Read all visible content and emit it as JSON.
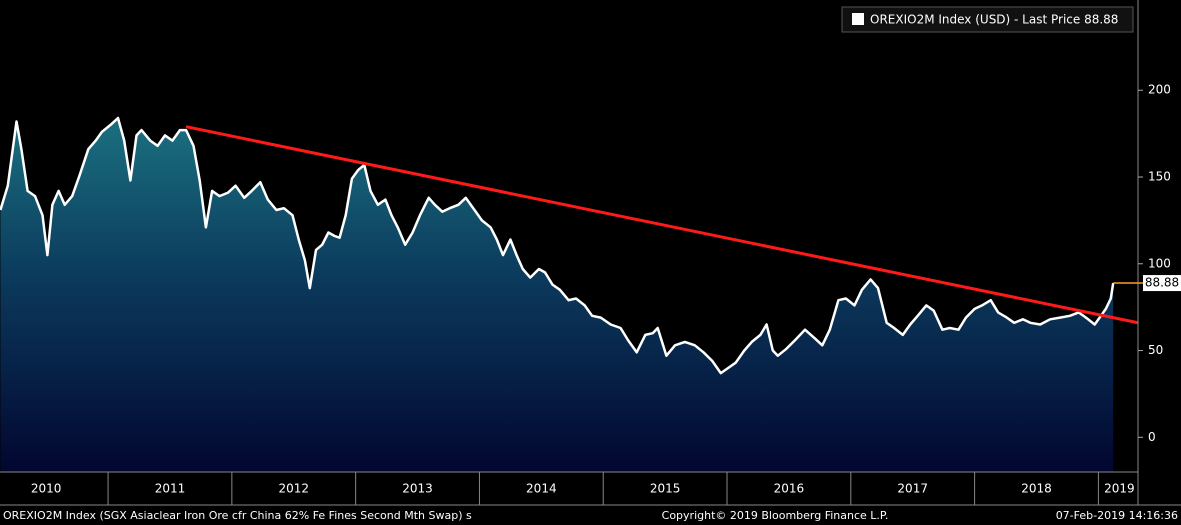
{
  "chart_data": {
    "type": "area",
    "series": [
      {
        "name": "OREXIO2M Index (USD) - Last Price 88.88",
        "color": "#ffffff",
        "x": [
          2010.13,
          2010.19,
          2010.26,
          2010.3,
          2010.35,
          2010.41,
          2010.47,
          2010.51,
          2010.55,
          2010.6,
          2010.65,
          2010.71,
          2010.77,
          2010.84,
          2010.9,
          2010.95,
          2011.02,
          2011.08,
          2011.13,
          2011.18,
          2011.23,
          2011.27,
          2011.34,
          2011.4,
          2011.46,
          2011.52,
          2011.58,
          2011.63,
          2011.69,
          2011.74,
          2011.79,
          2011.84,
          2011.9,
          2011.97,
          2012.03,
          2012.1,
          2012.16,
          2012.23,
          2012.29,
          2012.36,
          2012.42,
          2012.49,
          2012.54,
          2012.59,
          2012.63,
          2012.68,
          2012.73,
          2012.78,
          2012.83,
          2012.87,
          2012.92,
          2012.97,
          2013.02,
          2013.07,
          2013.12,
          2013.18,
          2013.24,
          2013.29,
          2013.34,
          2013.4,
          2013.46,
          2013.52,
          2013.59,
          2013.64,
          2013.7,
          2013.76,
          2013.83,
          2013.89,
          2013.96,
          2014.02,
          2014.09,
          2014.14,
          2014.19,
          2014.25,
          2014.3,
          2014.35,
          2014.41,
          2014.48,
          2014.53,
          2014.59,
          2014.65,
          2014.72,
          2014.78,
          2014.85,
          2014.91,
          2014.98,
          2015.06,
          2015.14,
          2015.2,
          2015.27,
          2015.34,
          2015.4,
          2015.44,
          2015.51,
          2015.58,
          2015.66,
          2015.74,
          2015.81,
          2015.88,
          2015.95,
          2016.01,
          2016.07,
          2016.14,
          2016.2,
          2016.27,
          2016.32,
          2016.37,
          2016.41,
          2016.48,
          2016.55,
          2016.63,
          2016.71,
          2016.77,
          2016.83,
          2016.9,
          2016.96,
          2017.03,
          2017.09,
          2017.16,
          2017.22,
          2017.29,
          2017.35,
          2017.42,
          2017.48,
          2017.54,
          2017.61,
          2017.67,
          2017.74,
          2017.8,
          2017.87,
          2017.93,
          2018.0,
          2018.06,
          2018.13,
          2018.19,
          2018.26,
          2018.32,
          2018.39,
          2018.45,
          2018.53,
          2018.61,
          2018.69,
          2018.77,
          2018.84,
          2018.9,
          2018.97,
          2019.02,
          2019.06,
          2019.1,
          2019.12
        ],
        "values": [
          131,
          145,
          182,
          166,
          142,
          139,
          128,
          105,
          134,
          142,
          134,
          139,
          151,
          166,
          171,
          176,
          180,
          184,
          171,
          148,
          174,
          177,
          171,
          168,
          174,
          171,
          177,
          177,
          168,
          148,
          121,
          142,
          139,
          141,
          145,
          138,
          142,
          147,
          137,
          131,
          132,
          128,
          114,
          102,
          86,
          108,
          111,
          118,
          116,
          115,
          128,
          149,
          154,
          157,
          142,
          134,
          137,
          128,
          121,
          111,
          118,
          128,
          138,
          134,
          130,
          132,
          134,
          138,
          131,
          125,
          121,
          114,
          105,
          114,
          105,
          97,
          92,
          97,
          95,
          88,
          85,
          79,
          80,
          76,
          70,
          69,
          65,
          63,
          56,
          49,
          59,
          60,
          63,
          47,
          53,
          55,
          53,
          49,
          44,
          37,
          40,
          43,
          50,
          55,
          59,
          65,
          50,
          47,
          51,
          56,
          62,
          57,
          53,
          62,
          79,
          80,
          76,
          85,
          91,
          86,
          66,
          63,
          59,
          65,
          70,
          76,
          73,
          62,
          63,
          62,
          69,
          74,
          76,
          79,
          72,
          69,
          66,
          68,
          66,
          65,
          68,
          69,
          70,
          72,
          69,
          65,
          70,
          74,
          80,
          88.88
        ],
        "last_value": 88.88
      }
    ],
    "trendline": {
      "color": "#ff1a1a",
      "x": [
        2011.63,
        2019.32
      ],
      "values": [
        179,
        66
      ]
    },
    "xlim": [
      2010.127,
      2019.32
    ],
    "xticks": [
      {
        "value": 2010.5,
        "label": "2010"
      },
      {
        "value": 2011.5,
        "label": "2011"
      },
      {
        "value": 2012.5,
        "label": "2012"
      },
      {
        "value": 2013.5,
        "label": "2013"
      },
      {
        "value": 2014.5,
        "label": "2014"
      },
      {
        "value": 2015.5,
        "label": "2015"
      },
      {
        "value": 2016.5,
        "label": "2016"
      },
      {
        "value": 2017.5,
        "label": "2017"
      },
      {
        "value": 2018.5,
        "label": "2018"
      },
      {
        "value": 2019.17,
        "label": "2019"
      }
    ],
    "year_boundaries": [
      2011,
      2012,
      2013,
      2014,
      2015,
      2016,
      2017,
      2018,
      2019
    ],
    "ylim": [
      -20,
      252
    ],
    "yticks": [
      0,
      50,
      100,
      150,
      200
    ],
    "footer": {
      "left": "OREXIO2M Index (SGX Asiaclear Iron Ore cfr China 62% Fe Fines Second Mth Swap) s",
      "center": "Copyright© 2019 Bloomberg Finance L.P.",
      "right": "07-Feb-2019 14:16:36"
    }
  }
}
